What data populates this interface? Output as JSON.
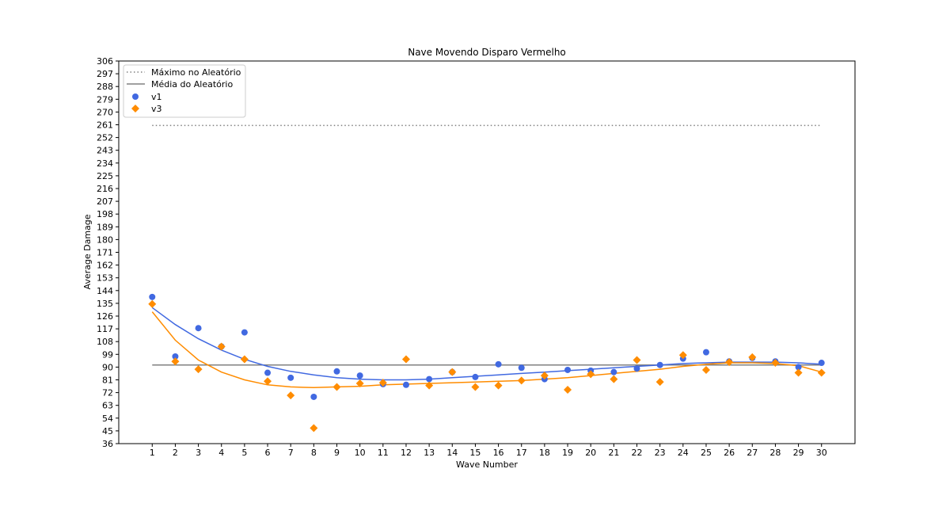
{
  "chart_data": {
    "type": "scatter",
    "title": "Nave Movendo Disparo Vermelho",
    "xlabel": "Wave Number",
    "ylabel": "Average Damage",
    "xlim": [
      -0.45,
      31.45
    ],
    "ylim": [
      36,
      306
    ],
    "x": [
      1,
      2,
      3,
      4,
      5,
      6,
      7,
      8,
      9,
      10,
      11,
      12,
      13,
      14,
      15,
      16,
      17,
      18,
      19,
      20,
      21,
      22,
      23,
      24,
      25,
      26,
      27,
      28,
      29,
      30
    ],
    "yticks": [
      36,
      45,
      54,
      63,
      72,
      81,
      90,
      99,
      108,
      117,
      126,
      135,
      144,
      153,
      162,
      171,
      180,
      189,
      198,
      207,
      216,
      225,
      234,
      243,
      252,
      261,
      270,
      279,
      288,
      297,
      306
    ],
    "reference_lines": [
      {
        "name": "Máximo no Aleatório",
        "y": 260.5,
        "style": "dotted",
        "color": "#808080"
      },
      {
        "name": "Média do Aleatório",
        "y": 91.5,
        "style": "solid",
        "color": "#808080"
      }
    ],
    "series": [
      {
        "name": "v1",
        "color": "#4169e1",
        "marker": "circle",
        "values": [
          139.5,
          97.5,
          117.5,
          104.5,
          114.5,
          86,
          82.5,
          69,
          87,
          84,
          78,
          77.5,
          81.5,
          86.5,
          83,
          92,
          89.5,
          81.5,
          88,
          87.5,
          86.5,
          89,
          91.5,
          96,
          100.5,
          94,
          96.5,
          94,
          90,
          93
        ],
        "trend": [
          132,
          120,
          110,
          102,
          95.5,
          90.5,
          87,
          84.5,
          82.5,
          81.5,
          81,
          81,
          81.5,
          82.5,
          83.5,
          84.5,
          85.5,
          86.5,
          87.5,
          88.5,
          89.5,
          90.5,
          91.5,
          92.5,
          93,
          93.5,
          93.5,
          93.5,
          93,
          92
        ]
      },
      {
        "name": "v3",
        "color": "#ff8c00",
        "marker": "diamond",
        "values": [
          134.5,
          94,
          88.5,
          104.5,
          95.5,
          80,
          70,
          47,
          76,
          78.5,
          79,
          95.5,
          77,
          86.5,
          76,
          77,
          80.5,
          84,
          74,
          85,
          81.5,
          95,
          79.5,
          98.5,
          88,
          93.5,
          97,
          93,
          86,
          86
        ],
        "trend": [
          129,
          109,
          95,
          86.5,
          81,
          77.5,
          76,
          75.5,
          76,
          76.5,
          77.5,
          78,
          78.5,
          79,
          79.5,
          80,
          80.5,
          81.5,
          82.5,
          84,
          85.5,
          87,
          88.5,
          90.5,
          92,
          93,
          93,
          92.5,
          91,
          86.5
        ]
      }
    ],
    "legend": {
      "position": "top-left",
      "entries": [
        "Máximo no Aleatório",
        "Média do Aleatório",
        "v1",
        "v3"
      ]
    },
    "grid": false
  }
}
